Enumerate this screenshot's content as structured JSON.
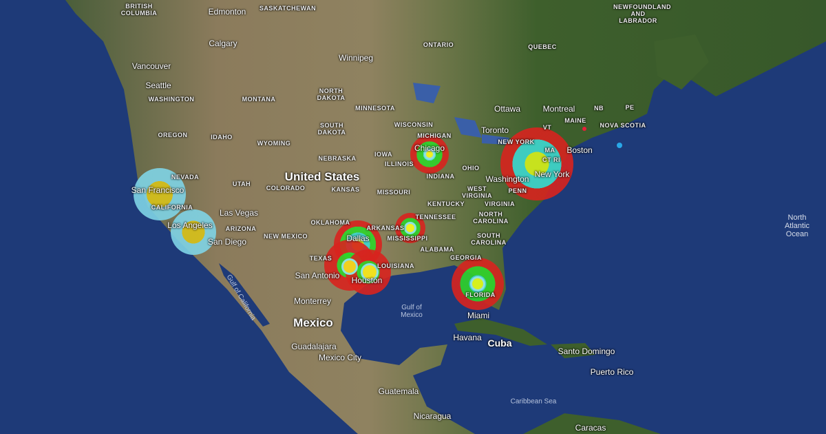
{
  "map": {
    "countries": [
      "United States",
      "Mexico",
      "Cuba"
    ],
    "states": [
      "BRITISH COLUMBIA",
      "SASKATCHEWAN",
      "ONTARIO",
      "QUEBEC",
      "NEWFOUNDLAND AND LABRADOR",
      "WASHINGTON",
      "MONTANA",
      "NORTH DAKOTA",
      "MINNESOTA",
      "WISCONSIN",
      "MICHIGAN",
      "OREGON",
      "IDAHO",
      "WYOMING",
      "SOUTH DAKOTA",
      "NEBRASKA",
      "IOWA",
      "ILLINOIS",
      "INDIANA",
      "OHIO",
      "NEVADA",
      "UTAH",
      "COLORADO",
      "KANSAS",
      "MISSOURI",
      "KENTUCKY",
      "WEST VIRGINIA",
      "VIRGINIA",
      "CALIFORNIA",
      "ARIZONA",
      "NEW MEXICO",
      "OKLAHOMA",
      "ARKANSAS",
      "TENNESSEE",
      "NORTH CAROLINA",
      "SOUTH CAROLINA",
      "MISSISSIPPI",
      "ALABAMA",
      "GEORGIA",
      "LOUISIANA",
      "TEXAS",
      "FLORIDA",
      "NEW YORK",
      "PENN",
      "MAINE",
      "NOVA SCOTIA",
      "PE",
      "NB",
      "VT",
      "MA",
      "CT RI"
    ],
    "cities": [
      "Edmonton",
      "Calgary",
      "Winnipeg",
      "Vancouver",
      "Seattle",
      "Ottawa",
      "Montreal",
      "Toronto",
      "Boston",
      "New York",
      "Washington",
      "Chicago",
      "San Francisco",
      "Las Vegas",
      "Los Angeles",
      "San Diego",
      "Dallas",
      "San Antonio",
      "Houston",
      "Monterrey",
      "Miami",
      "Havana",
      "Guadalajara",
      "Mexico City",
      "Santo Domingo",
      "Puerto Rico",
      "Guatemala",
      "Nicaragua",
      "Caracas"
    ],
    "water": [
      "Gulf of California",
      "Gulf of Mexico",
      "Caribbean Sea",
      "North Atlantic Ocean"
    ]
  },
  "hotspots": [
    {
      "name": "San Francisco",
      "intensity": "high",
      "colors": [
        "#7fd4e6",
        "#d8c21a"
      ]
    },
    {
      "name": "Los Angeles",
      "intensity": "high",
      "colors": [
        "#7fd4e6",
        "#d8c21a"
      ]
    },
    {
      "name": "Chicago",
      "intensity": "medium",
      "colors": [
        "#d8231e",
        "#2fd42a",
        "#4de8e0"
      ]
    },
    {
      "name": "New York",
      "intensity": "very-high",
      "colors": [
        "#d8231e",
        "#3ed8d0",
        "#d6f01c"
      ]
    },
    {
      "name": "Dallas",
      "intensity": "high",
      "colors": [
        "#d8231e",
        "#2fd42a",
        "#3ed8d0",
        "#d6f01c"
      ]
    },
    {
      "name": "San Antonio",
      "intensity": "medium",
      "colors": [
        "#d8231e",
        "#2fd42a"
      ]
    },
    {
      "name": "Houston",
      "intensity": "medium",
      "colors": [
        "#d8231e",
        "#2fd42a"
      ]
    },
    {
      "name": "Mississippi",
      "intensity": "low",
      "colors": [
        "#d8231e",
        "#2fd42a",
        "#3ed8d0"
      ]
    },
    {
      "name": "Florida",
      "intensity": "medium",
      "colors": [
        "#d8231e",
        "#2fd42a",
        "#3ed8d0"
      ]
    }
  ],
  "markers": [
    {
      "color": "#e8203a"
    },
    {
      "color": "#29a8e8"
    }
  ]
}
